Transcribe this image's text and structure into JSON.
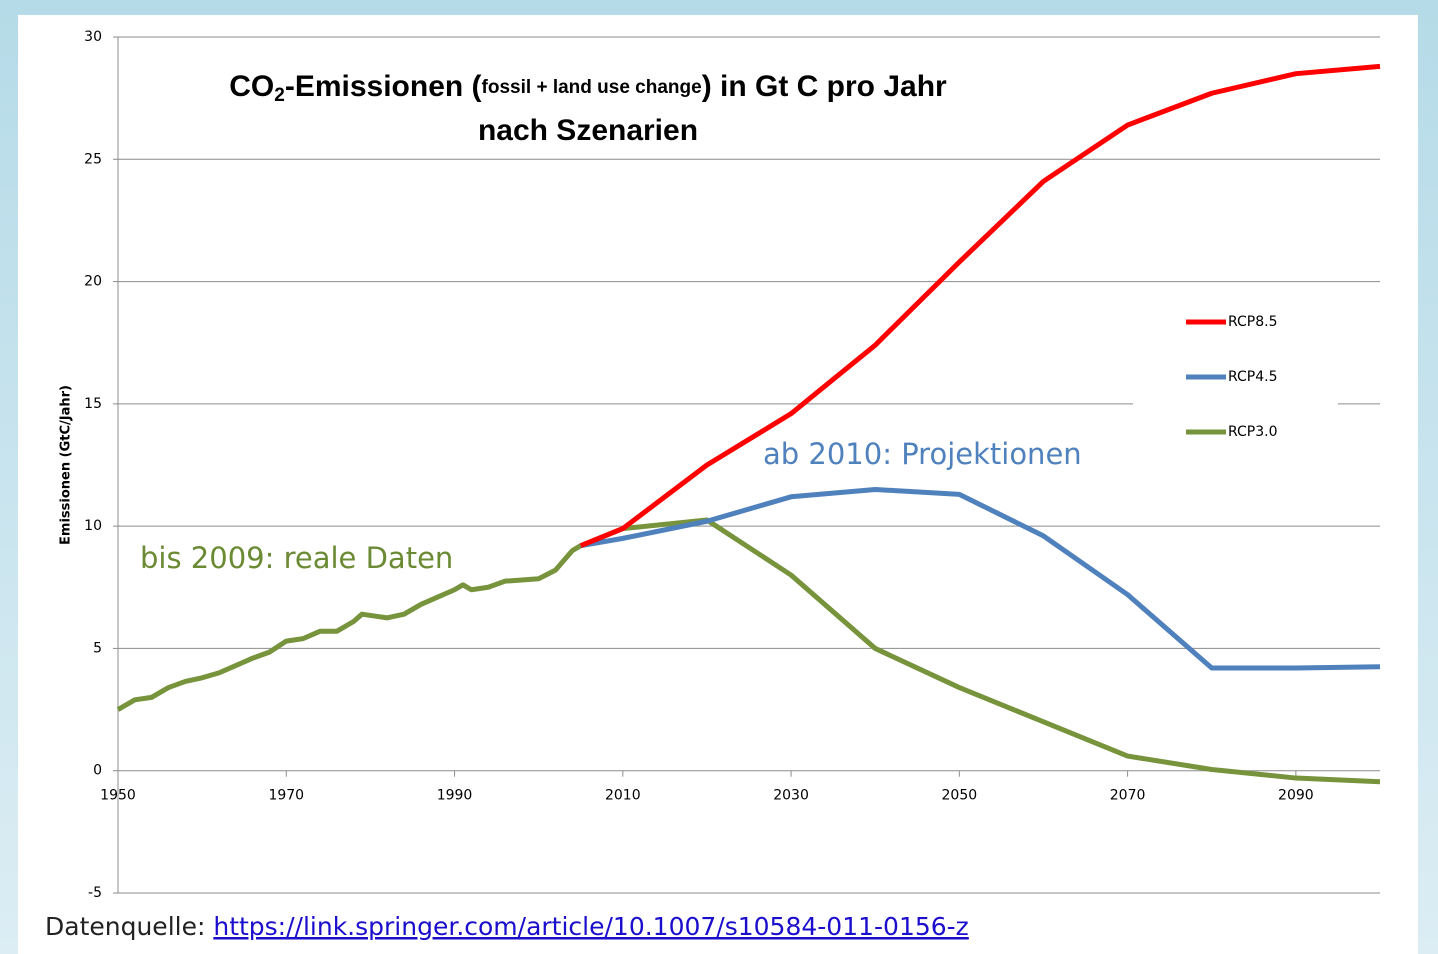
{
  "chart_data": {
    "type": "line",
    "title": [
      "CO",
      "2",
      "-Emissionen (",
      "fossil + land use change",
      ") in Gt C pro Jahr"
    ],
    "subtitle": "nach Szenarien",
    "y_label": "Emissionen (GtC/Jahr)",
    "x": [
      1950,
      1952,
      1954,
      1956,
      1958,
      1960,
      1962,
      1964,
      1966,
      1968,
      1970,
      1972,
      1974,
      1976,
      1978,
      1979,
      1982,
      1984,
      1986,
      1988,
      1990,
      1991,
      1992,
      1994,
      1996,
      1998,
      2000,
      2002,
      2004,
      2005,
      2010,
      2020,
      2030,
      2040,
      2050,
      2060,
      2070,
      2080,
      2090,
      2100
    ],
    "series": [
      {
        "name": "RCP8.5",
        "color": "#ff0000",
        "values": [
          null,
          null,
          null,
          null,
          null,
          null,
          null,
          null,
          null,
          null,
          null,
          null,
          null,
          null,
          null,
          null,
          null,
          null,
          null,
          null,
          null,
          null,
          null,
          null,
          null,
          null,
          null,
          null,
          null,
          9.2,
          9.9,
          12.5,
          14.6,
          17.4,
          20.8,
          24.1,
          26.4,
          27.7,
          28.5,
          28.8
        ]
      },
      {
        "name": "RCP4.5",
        "color": "#4f81bd",
        "values": [
          null,
          null,
          null,
          null,
          null,
          null,
          null,
          null,
          null,
          null,
          null,
          null,
          null,
          null,
          null,
          null,
          null,
          null,
          null,
          null,
          null,
          null,
          null,
          null,
          null,
          null,
          null,
          null,
          null,
          9.2,
          9.5,
          10.2,
          11.2,
          11.5,
          11.3,
          9.6,
          7.2,
          4.2,
          4.2,
          4.25
        ]
      },
      {
        "name": "RCP3.0",
        "color": "#77933c",
        "values": [
          2.5,
          2.9,
          3.0,
          3.4,
          3.65,
          3.8,
          4.0,
          4.3,
          4.6,
          4.85,
          5.3,
          5.4,
          5.7,
          5.7,
          6.1,
          6.4,
          6.25,
          6.4,
          6.8,
          7.1,
          7.4,
          7.6,
          7.4,
          7.5,
          7.75,
          7.8,
          7.85,
          8.2,
          9.0,
          9.2,
          9.9,
          10.25,
          8.0,
          5.0,
          3.4,
          2.0,
          0.6,
          0.05,
          -0.3,
          -0.45
        ]
      }
    ],
    "xlim": [
      1950,
      2100
    ],
    "xticks": [
      1950,
      1970,
      1990,
      2010,
      2030,
      2050,
      2070,
      2090
    ],
    "ylim": [
      -5,
      30
    ],
    "yticks": [
      -5,
      0,
      5,
      10,
      15,
      20,
      25,
      30
    ],
    "grid": true,
    "legend": "right",
    "annotations": [
      {
        "text": "bis 2009: reale Daten",
        "color": "#6b8a34"
      },
      {
        "text": "ab 2010: Projektionen",
        "color": "#4f81bd"
      }
    ],
    "source": {
      "label": "Datenquelle: ",
      "link": "https://link.springer.com/article/10.1007/s10584-011-0156-z"
    }
  }
}
